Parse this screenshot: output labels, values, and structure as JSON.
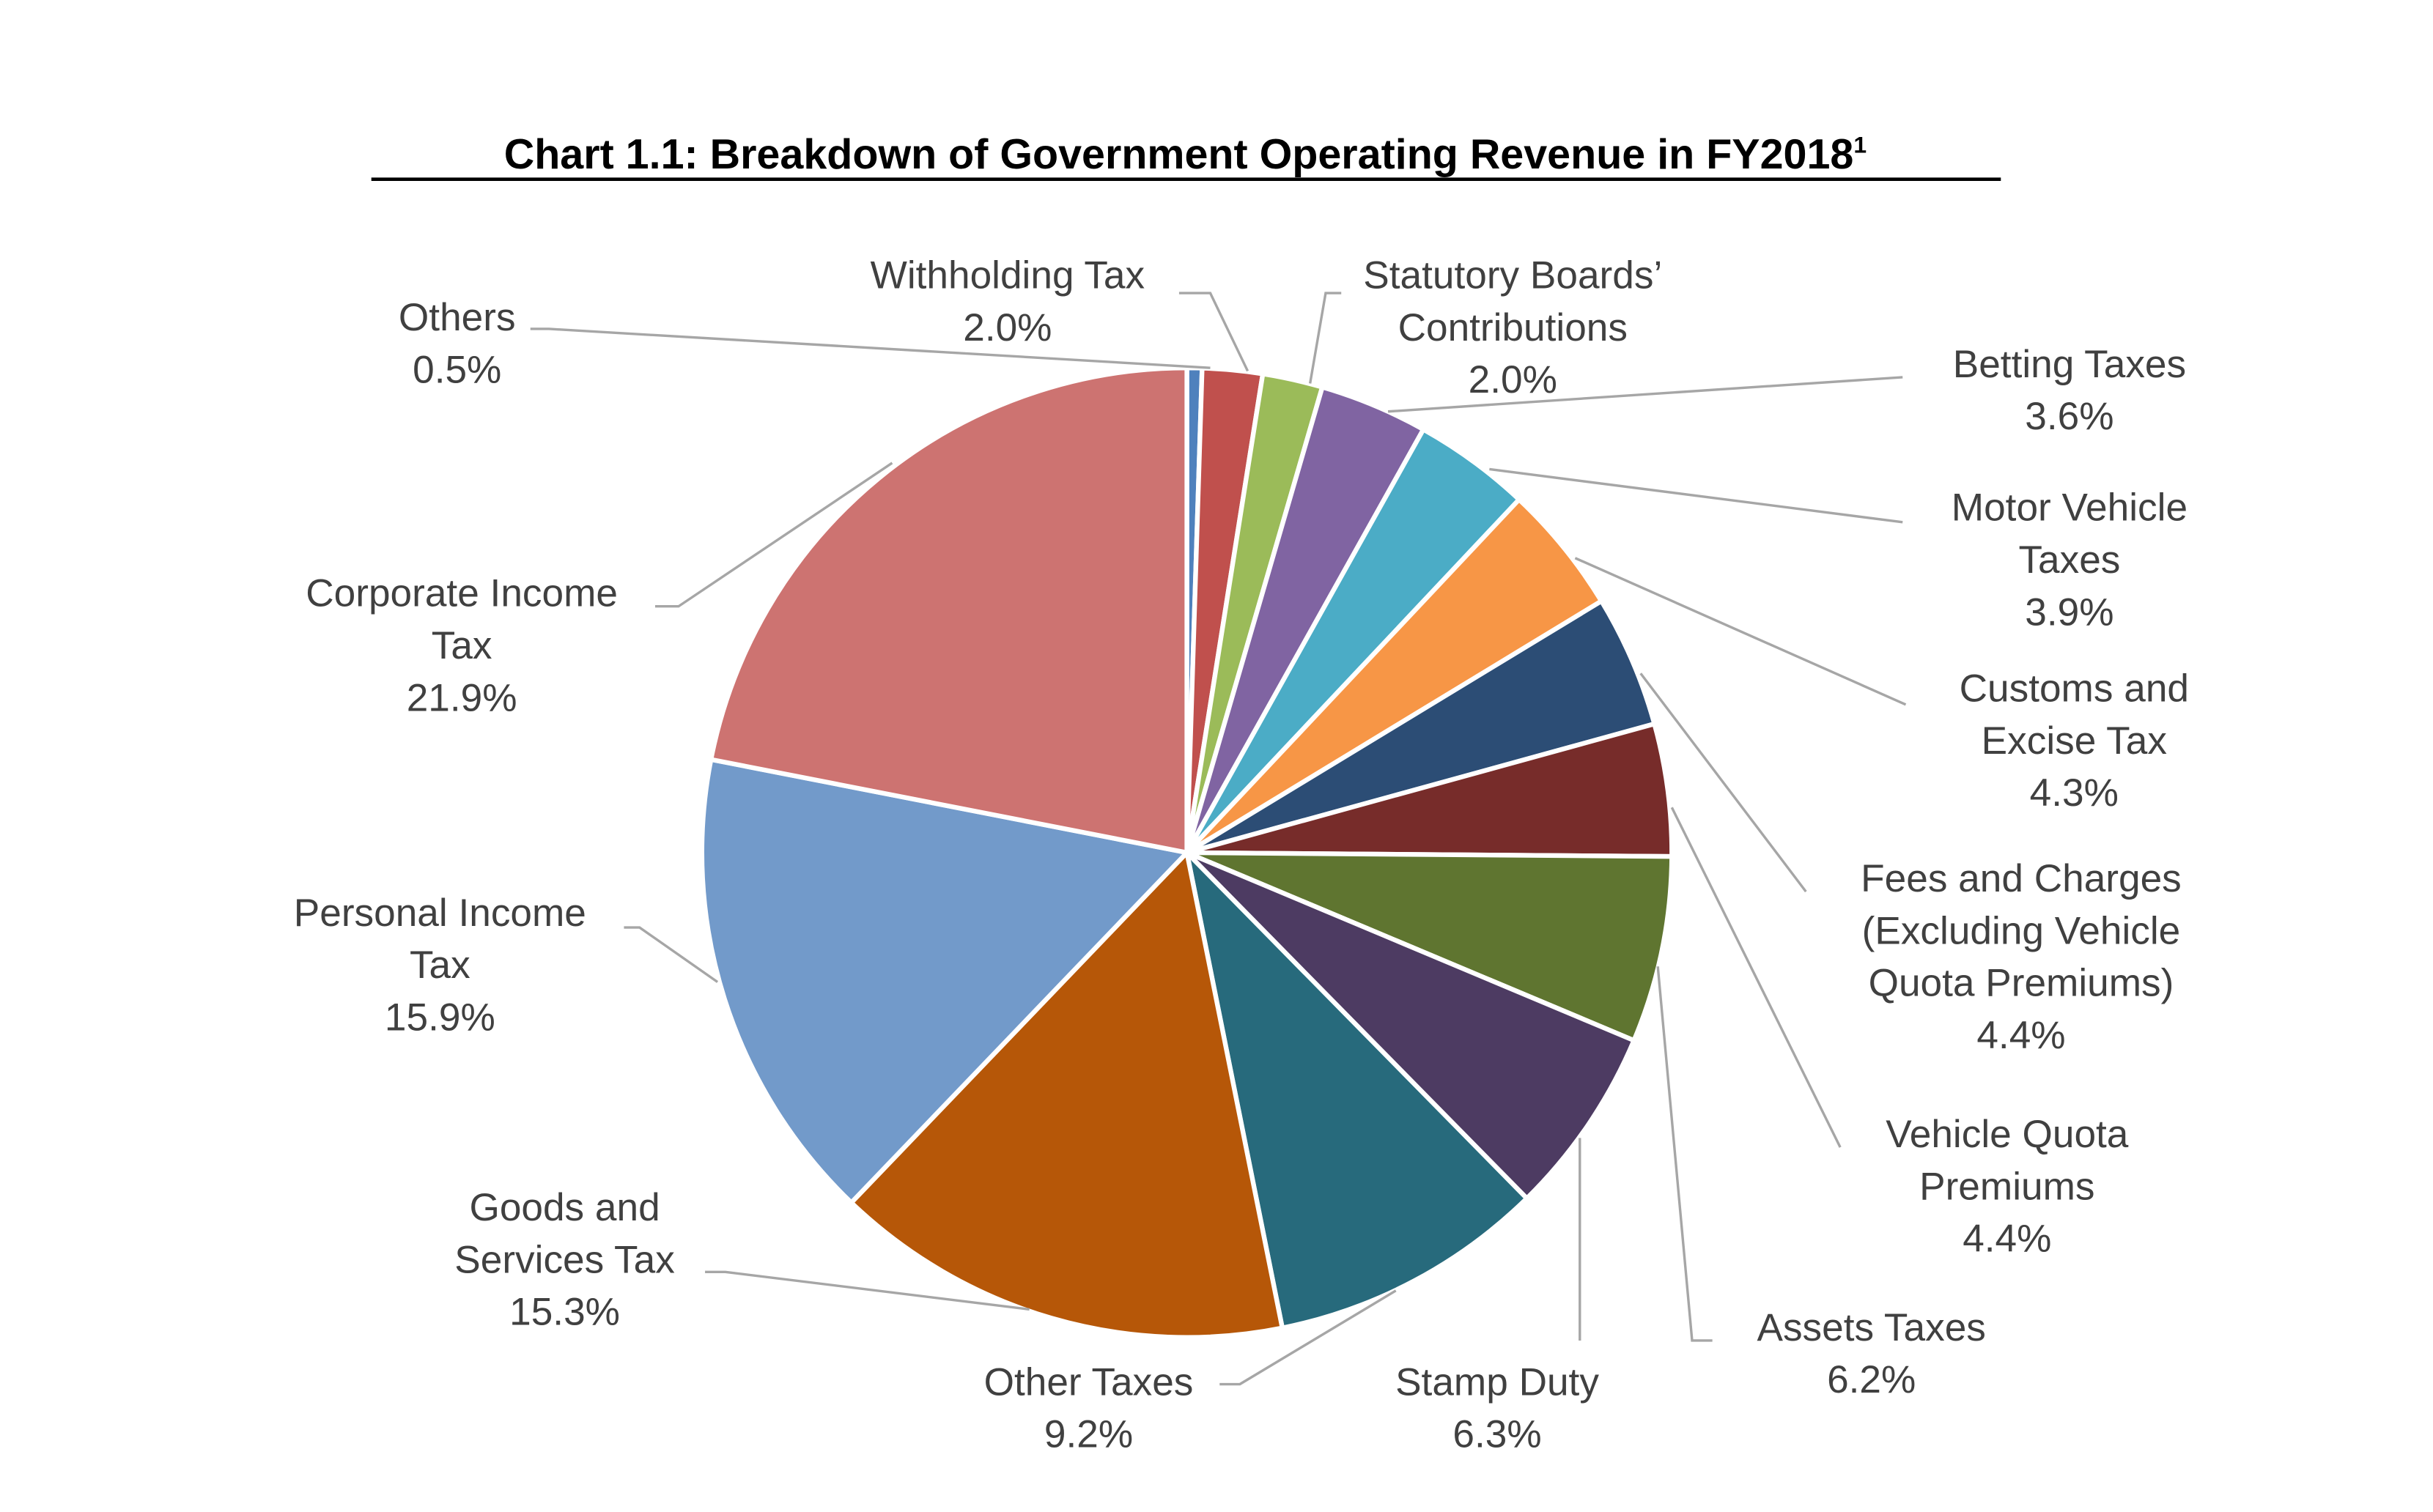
{
  "chart_data": {
    "type": "pie",
    "title": "Chart 1.1: Breakdown of Government Operating Revenue in FY2018",
    "title_footnote": "1",
    "start_angle": "12 o'clock",
    "direction": "clockwise",
    "legend": "none (data labels with leader lines)",
    "slices": [
      {
        "label": [
          "Others"
        ],
        "value": 0.5,
        "value_label": "0.5%",
        "color": "#4F81BD"
      },
      {
        "label": [
          "Withholding Tax"
        ],
        "value": 2.0,
        "value_label": "2.0%",
        "color": "#C0504D"
      },
      {
        "label": [
          "Statutory Boards’",
          "Contributions"
        ],
        "value": 2.0,
        "value_label": "2.0%",
        "color": "#9BBB59"
      },
      {
        "label": [
          "Betting Taxes"
        ],
        "value": 3.6,
        "value_label": "3.6%",
        "color": "#8064A2"
      },
      {
        "label": [
          "Motor Vehicle",
          "Taxes"
        ],
        "value": 3.9,
        "value_label": "3.9%",
        "color": "#4BACC6"
      },
      {
        "label": [
          "Customs and",
          "Excise Tax"
        ],
        "value": 4.3,
        "value_label": "4.3%",
        "color": "#F79646"
      },
      {
        "label": [
          "Fees and Charges",
          "(Excluding Vehicle",
          "Quota Premiums)"
        ],
        "value": 4.4,
        "value_label": "4.4%",
        "color": "#2C4D75"
      },
      {
        "label": [
          "Vehicle Quota",
          "Premiums"
        ],
        "value": 4.4,
        "value_label": "4.4%",
        "color": "#772C2A"
      },
      {
        "label": [
          "Assets Taxes"
        ],
        "value": 6.2,
        "value_label": "6.2%",
        "color": "#5F7530"
      },
      {
        "label": [
          "Stamp Duty"
        ],
        "value": 6.3,
        "value_label": "6.3%",
        "color": "#4D3B62"
      },
      {
        "label": [
          "Other Taxes"
        ],
        "value": 9.2,
        "value_label": "9.2%",
        "color": "#276A7C"
      },
      {
        "label": [
          "Goods and",
          "Services Tax"
        ],
        "value": 15.3,
        "value_label": "15.3%",
        "color": "#B65708"
      },
      {
        "label": [
          "Personal Income",
          "Tax"
        ],
        "value": 15.9,
        "value_label": "15.9%",
        "color": "#729ACA"
      },
      {
        "label": [
          "Corporate Income",
          "Tax"
        ],
        "value": 21.9,
        "value_label": "21.9%",
        "color": "#CD7371"
      }
    ]
  }
}
